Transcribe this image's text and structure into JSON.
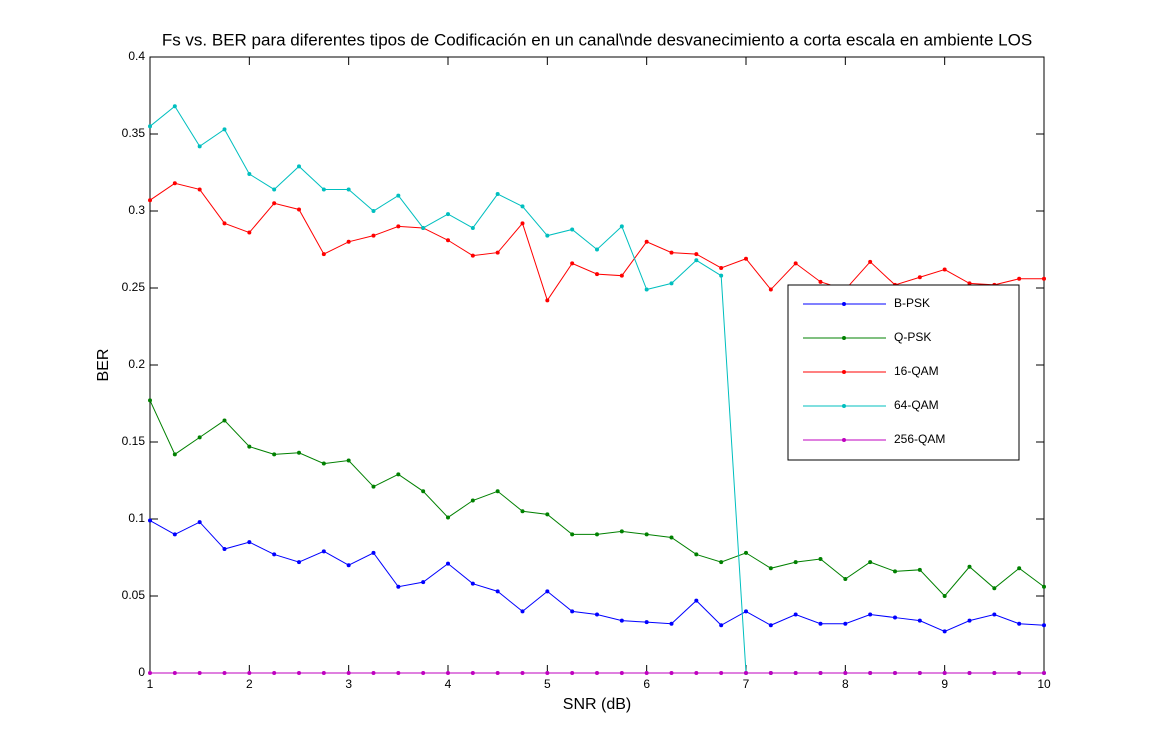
{
  "chart_data": {
    "type": "line",
    "title": "Fs vs. BER para diferentes tipos de Codificación en un canal\\nde desvanecimiento a corta escala en ambiente LOS",
    "xlabel": "SNR (dB)",
    "ylabel": "BER",
    "x": [
      1,
      1.25,
      1.5,
      1.75,
      2,
      2.25,
      2.5,
      2.75,
      3,
      3.25,
      3.5,
      3.75,
      4,
      4.25,
      4.5,
      4.75,
      5,
      5.25,
      5.5,
      5.75,
      6,
      6.25,
      6.5,
      6.75,
      7,
      7.25,
      7.5,
      7.75,
      8,
      8.25,
      8.5,
      8.75,
      9,
      9.25,
      9.5,
      9.75,
      10
    ],
    "series": [
      {
        "name": "B-PSK",
        "color": "#0000ff",
        "values": [
          0.099,
          0.09,
          0.098,
          0.0805,
          0.085,
          0.077,
          0.072,
          0.079,
          0.07,
          0.078,
          0.056,
          0.059,
          0.071,
          0.058,
          0.053,
          0.04,
          0.053,
          0.04,
          0.038,
          0.034,
          0.033,
          0.032,
          0.047,
          0.031,
          0.04,
          0.031,
          0.038,
          0.032,
          0.032,
          0.038,
          0.036,
          0.034,
          0.027,
          0.034,
          0.038,
          0.032,
          0.031
        ]
      },
      {
        "name": "Q-PSK",
        "color": "#008000",
        "values": [
          0.177,
          0.142,
          0.153,
          0.164,
          0.147,
          0.142,
          0.143,
          0.136,
          0.138,
          0.121,
          0.129,
          0.118,
          0.101,
          0.112,
          0.118,
          0.105,
          0.103,
          0.09,
          0.09,
          0.092,
          0.09,
          0.088,
          0.077,
          0.072,
          0.078,
          0.068,
          0.072,
          0.074,
          0.061,
          0.072,
          0.066,
          0.067,
          0.05,
          0.069,
          0.055,
          0.068,
          0.056
        ]
      },
      {
        "name": "16-QAM",
        "color": "#ff0000",
        "values": [
          0.307,
          0.318,
          0.314,
          0.292,
          0.286,
          0.305,
          0.301,
          0.272,
          0.28,
          0.284,
          0.29,
          0.289,
          0.281,
          0.271,
          0.273,
          0.292,
          0.242,
          0.266,
          0.259,
          0.258,
          0.28,
          0.273,
          0.272,
          0.263,
          0.269,
          0.249,
          0.266,
          0.254,
          0.249,
          0.267,
          0.252,
          0.257,
          0.262,
          0.253,
          0.252,
          0.256,
          0.256
        ]
      },
      {
        "name": "64-QAM",
        "color": "#00bfbf",
        "values": [
          0.355,
          0.368,
          0.342,
          0.353,
          0.324,
          0.314,
          0.329,
          0.314,
          0.314,
          0.3,
          0.31,
          0.289,
          0.298,
          0.289,
          0.311,
          0.303,
          0.284,
          0.288,
          0.275,
          0.29,
          0.249,
          0.253,
          0.268,
          0.258,
          0,
          0,
          0,
          0,
          0,
          0,
          0,
          0,
          0,
          0,
          0,
          0,
          0
        ]
      },
      {
        "name": "256-QAM",
        "color": "#bf00bf",
        "values": [
          0,
          0,
          0,
          0,
          0,
          0,
          0,
          0,
          0,
          0,
          0,
          0,
          0,
          0,
          0,
          0,
          0,
          0,
          0,
          0,
          0,
          0,
          0,
          0,
          0,
          0,
          0,
          0,
          0,
          0,
          0,
          0,
          0,
          0,
          0,
          0,
          0
        ]
      }
    ],
    "xlim": [
      1,
      10
    ],
    "xticks": [
      1,
      2,
      3,
      4,
      5,
      6,
      7,
      8,
      9,
      10
    ],
    "ylim": [
      0,
      0.4
    ],
    "yticks": [
      0,
      0.05,
      0.1,
      0.15,
      0.2,
      0.25,
      0.3,
      0.35,
      0.4
    ],
    "grid": false,
    "legend": "upper right"
  }
}
